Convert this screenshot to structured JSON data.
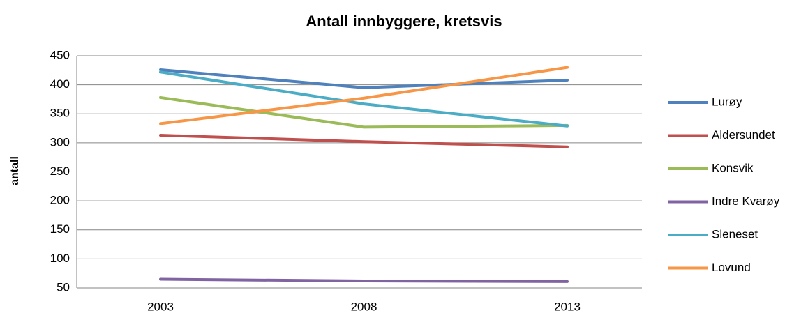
{
  "chart_data": {
    "type": "line",
    "title": "Antall innbyggere, kretsvis",
    "y_label": "antall",
    "categories": [
      "2003",
      "2008",
      "2013"
    ],
    "series": [
      {
        "name": "Lurøy",
        "color": "#4f81bd",
        "values": [
          426,
          395,
          408
        ]
      },
      {
        "name": "Aldersundet",
        "color": "#c0504d",
        "values": [
          313,
          302,
          293
        ]
      },
      {
        "name": "Konsvik",
        "color": "#9bbb59",
        "values": [
          378,
          327,
          330
        ]
      },
      {
        "name": "Indre Kvarøy",
        "color": "#8064a2",
        "values": [
          65,
          62,
          61
        ]
      },
      {
        "name": "Sleneset",
        "color": "#4bacc6",
        "values": [
          422,
          367,
          329
        ]
      },
      {
        "name": "Lovund",
        "color": "#f79646",
        "values": [
          333,
          377,
          430
        ]
      }
    ],
    "ylim": [
      50,
      450
    ],
    "yticks": [
      50,
      100,
      150,
      200,
      250,
      300,
      350,
      400,
      450
    ],
    "grid": true,
    "legend": "right"
  }
}
